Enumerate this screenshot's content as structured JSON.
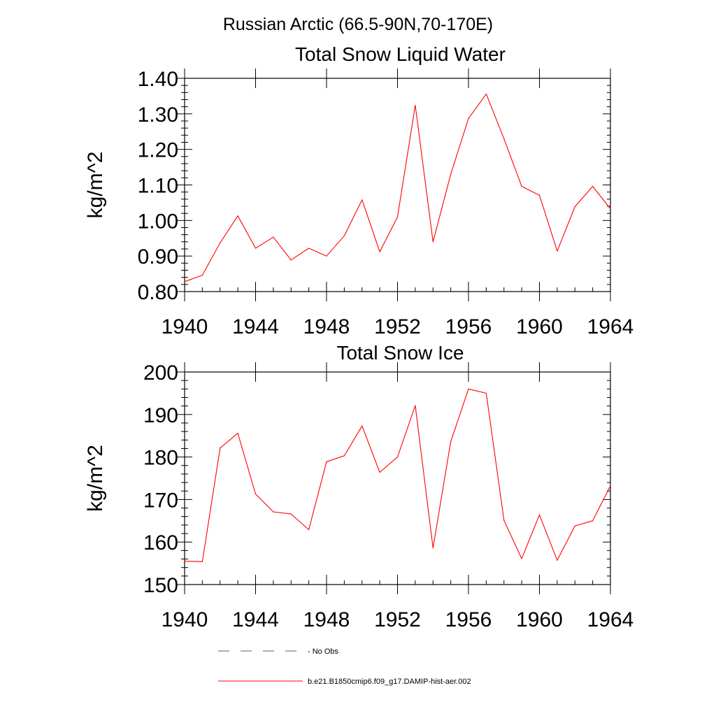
{
  "figure": {
    "title": "Russian Arctic (66.5-90N,70-170E)"
  },
  "legend": {
    "placement": "bottom-center",
    "items": [
      {
        "label": "No Obs",
        "color": "#5a5a8c",
        "style": "dashed"
      },
      {
        "label": "b.e21.B1850cmip6.f09_g17.DAMIP-hist-aer.002",
        "color": "#ff0000",
        "style": "solid"
      }
    ]
  },
  "chart_data": [
    {
      "type": "line",
      "title": "Total Snow Liquid Water",
      "xlabel": "",
      "ylabel": "kg/m^2",
      "xlim": [
        1940,
        1964
      ],
      "ylim": [
        0.8,
        1.4
      ],
      "xticks": [
        1940,
        1944,
        1948,
        1952,
        1956,
        1960,
        1964
      ],
      "xtick_labels": [
        "1940",
        "1944",
        "1948",
        "1952",
        "1956",
        "1960",
        "1964"
      ],
      "yticks": [
        0.8,
        0.9,
        1.0,
        1.1,
        1.2,
        1.3,
        1.4
      ],
      "ytick_labels": [
        "0.80",
        "0.90",
        "1.00",
        "1.10",
        "1.20",
        "1.30",
        "1.40"
      ],
      "grid": false,
      "x": [
        1940,
        1941,
        1942,
        1943,
        1944,
        1945,
        1946,
        1947,
        1948,
        1949,
        1950,
        1951,
        1952,
        1953,
        1954,
        1955,
        1956,
        1957,
        1958,
        1959,
        1960,
        1961,
        1962,
        1963,
        1964
      ],
      "series": [
        {
          "name": "b.e21.B1850cmip6.f09_g17.DAMIP-hist-aer.002",
          "color": "#ff0000",
          "values": [
            0.828,
            0.846,
            0.937,
            1.013,
            0.922,
            0.953,
            0.889,
            0.922,
            0.9,
            0.957,
            1.058,
            0.912,
            1.01,
            1.324,
            0.94,
            1.13,
            1.287,
            1.356,
            1.23,
            1.096,
            1.071,
            0.914,
            1.039,
            1.096,
            1.033
          ]
        }
      ]
    },
    {
      "type": "line",
      "title": "Total Snow Ice",
      "xlabel": "",
      "ylabel": "kg/m^2",
      "xlim": [
        1940,
        1964
      ],
      "ylim": [
        150,
        200
      ],
      "xticks": [
        1940,
        1944,
        1948,
        1952,
        1956,
        1960,
        1964
      ],
      "xtick_labels": [
        "1940",
        "1944",
        "1948",
        "1952",
        "1956",
        "1960",
        "1964"
      ],
      "yticks": [
        150,
        160,
        170,
        180,
        190,
        200
      ],
      "ytick_labels": [
        "150",
        "160",
        "170",
        "180",
        "190",
        "200"
      ],
      "grid": false,
      "x": [
        1940,
        1941,
        1942,
        1943,
        1944,
        1945,
        1946,
        1947,
        1948,
        1949,
        1950,
        1951,
        1952,
        1953,
        1954,
        1955,
        1956,
        1957,
        1958,
        1959,
        1960,
        1961,
        1962,
        1963,
        1964
      ],
      "series": [
        {
          "name": "b.e21.B1850cmip6.f09_g17.DAMIP-hist-aer.002",
          "color": "#ff0000",
          "values": [
            155.5,
            155.4,
            182.1,
            185.6,
            171.3,
            167.1,
            166.6,
            162.9,
            178.9,
            180.3,
            187.3,
            176.4,
            180.0,
            192.1,
            158.6,
            183.6,
            196.0,
            195.0,
            165.1,
            156.1,
            166.4,
            155.7,
            163.8,
            165.0,
            173.2
          ]
        }
      ]
    }
  ]
}
